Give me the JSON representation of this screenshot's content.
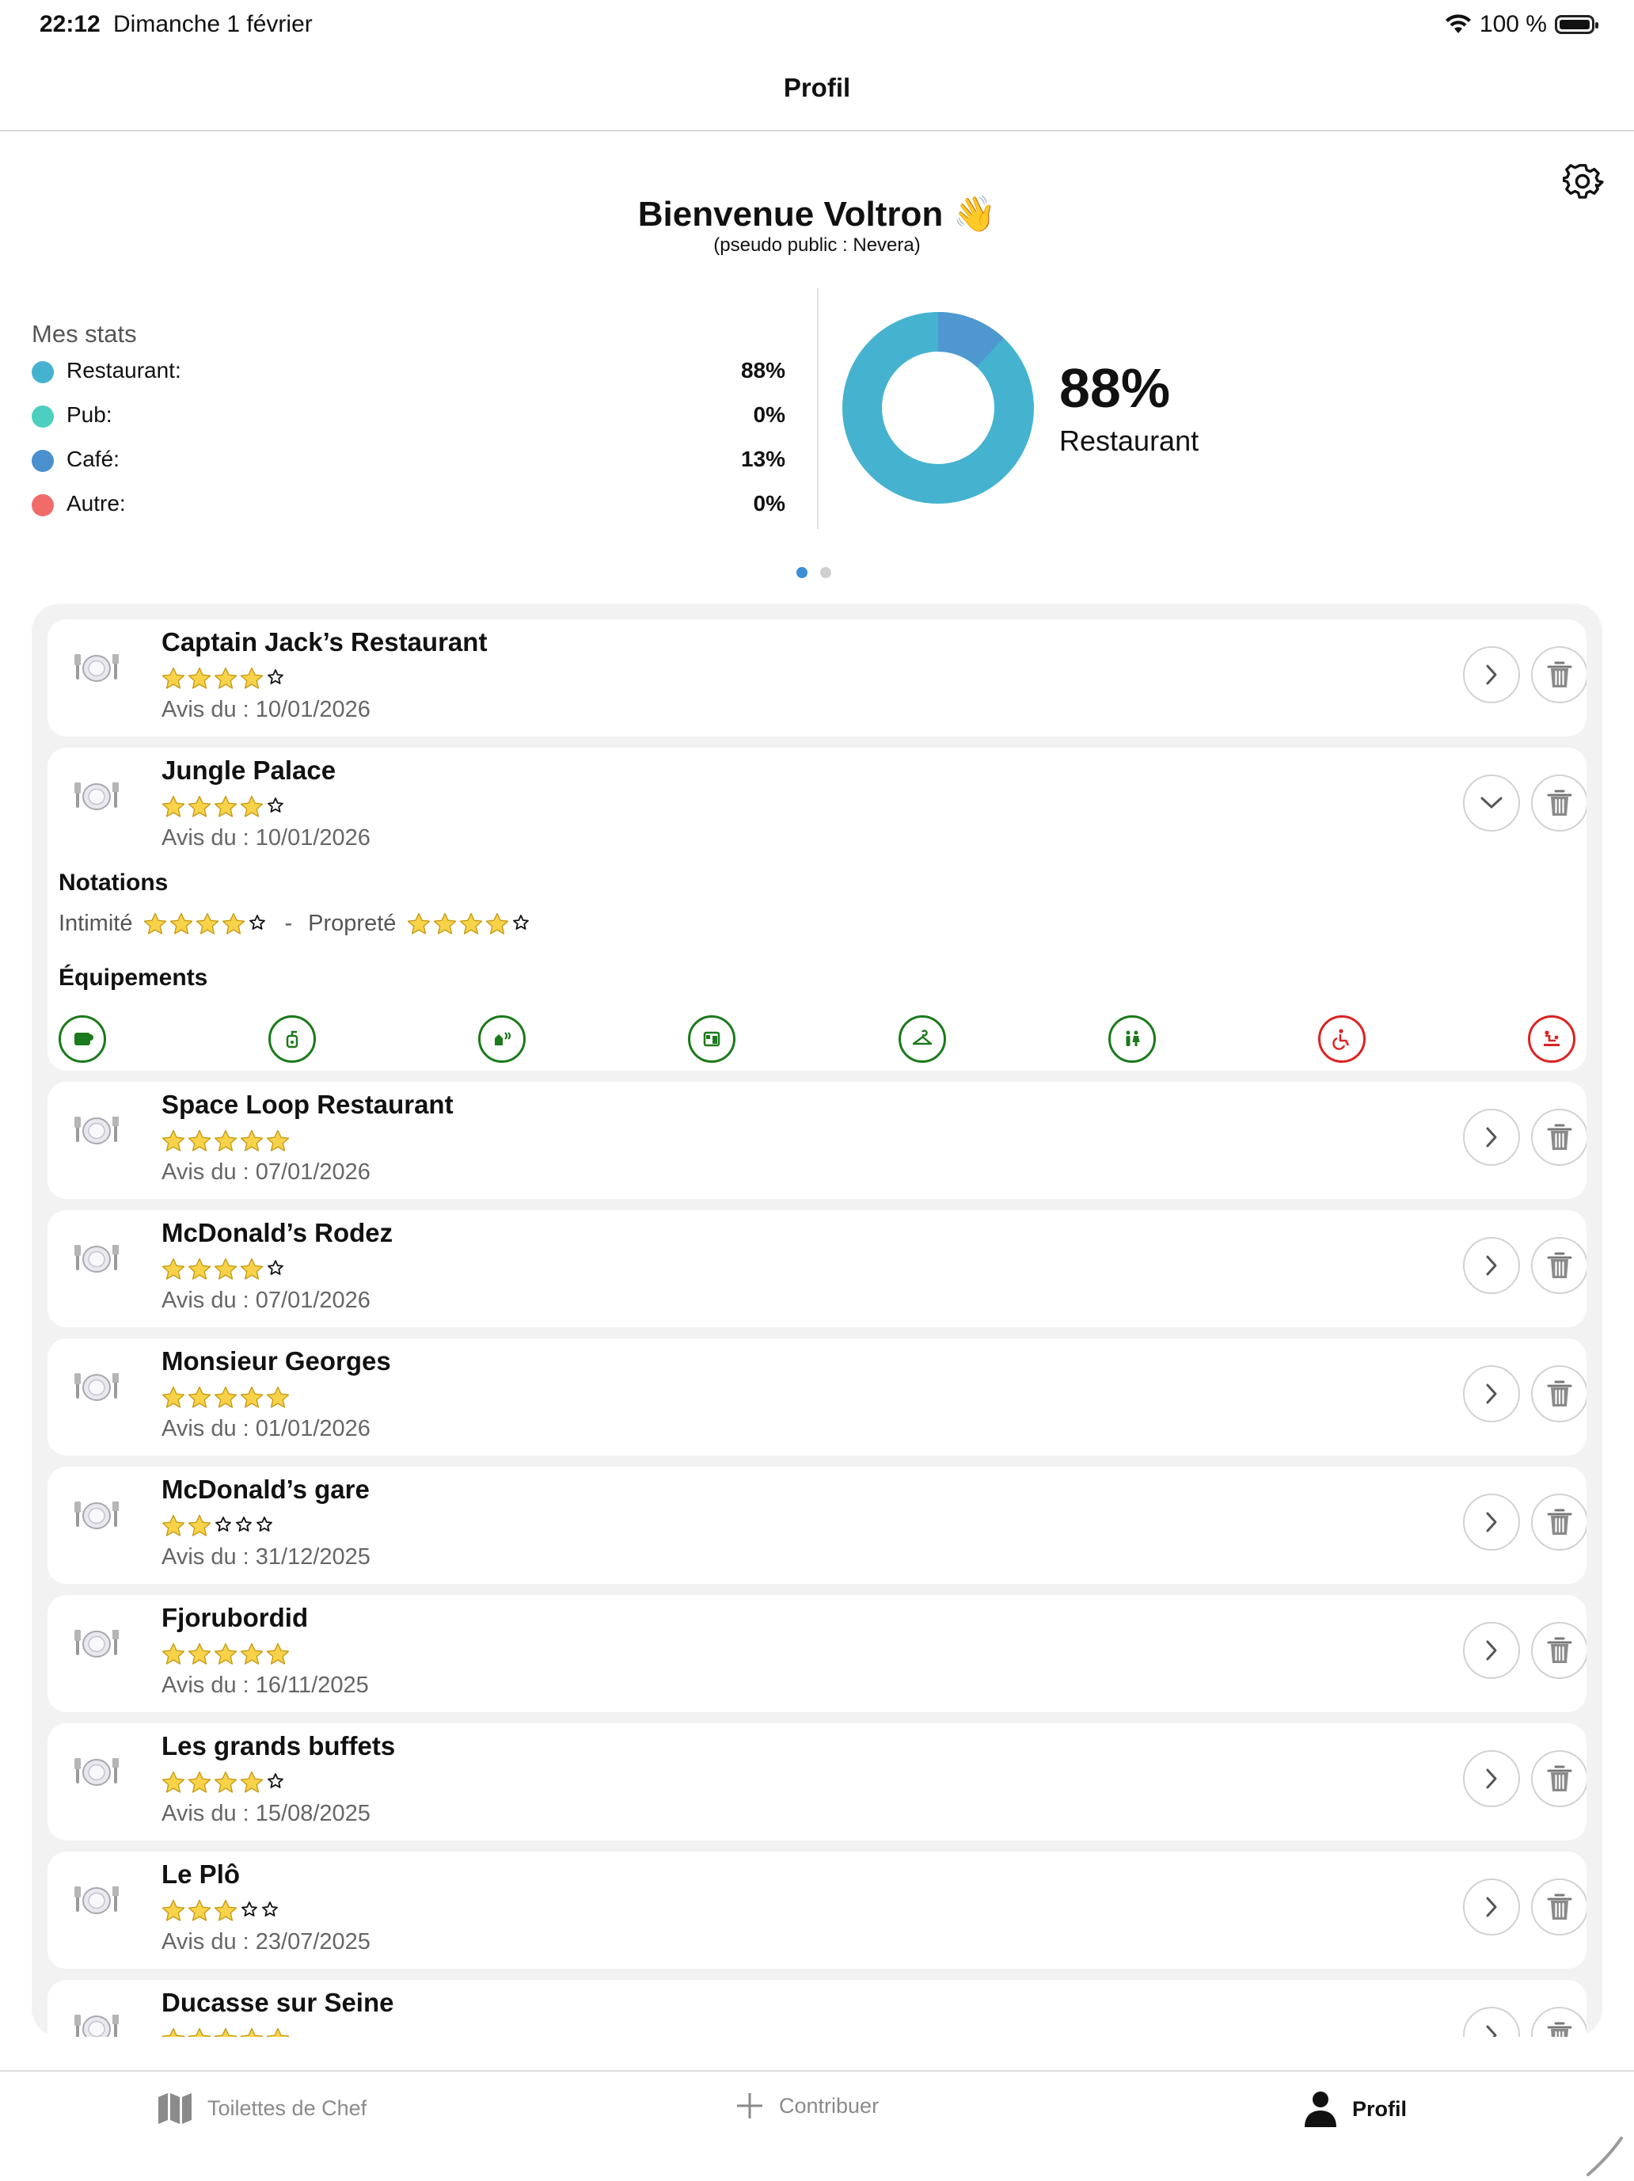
{
  "status_bar": {
    "time": "22:12",
    "date": "Dimanche 1 février",
    "battery": "100 %"
  },
  "nav": {
    "title": "Profil"
  },
  "header": {
    "welcome": "Bienvenue Voltron 👋",
    "pseudo": "(pseudo public : Nevera)"
  },
  "stats": {
    "title": "Mes stats",
    "items": [
      {
        "label": "Restaurant:",
        "value": "88%",
        "color": "#45b3cf"
      },
      {
        "label": "Pub:",
        "value": "0%",
        "color": "#4ccfc0"
      },
      {
        "label": "Café:",
        "value": "13%",
        "color": "#4a8fce"
      },
      {
        "label": "Autre:",
        "value": "0%",
        "color": "#f26b6b"
      }
    ],
    "donut_value": 0.88,
    "donut_main_color": "#45b3cf",
    "donut_accent_color": "#4f98cf",
    "donut_percent": "88%",
    "donut_label": "Restaurant"
  },
  "pager": {
    "active": 0,
    "pages": 2
  },
  "reviews": [
    {
      "name": "Captain Jack’s Restaurant",
      "rating": 4,
      "date_prefix": "Avis du :",
      "date": "10/01/2026",
      "expanded": false
    },
    {
      "name": "Jungle Palace",
      "rating": 4,
      "date_prefix": "Avis du :",
      "date": "10/01/2026",
      "expanded": true
    },
    {
      "name": "Space Loop Restaurant",
      "rating": 5,
      "date_prefix": "Avis du :",
      "date": "07/01/2026",
      "expanded": false
    },
    {
      "name": "McDonald’s Rodez",
      "rating": 4,
      "date_prefix": "Avis du :",
      "date": "07/01/2026",
      "expanded": false
    },
    {
      "name": "Monsieur Georges",
      "rating": 5,
      "date_prefix": "Avis du :",
      "date": "01/01/2026",
      "expanded": false
    },
    {
      "name": "McDonald’s gare",
      "rating": 2,
      "date_prefix": "Avis du :",
      "date": "31/12/2025",
      "expanded": false
    },
    {
      "name": "Fjorubordid",
      "rating": 5,
      "date_prefix": "Avis du :",
      "date": "16/11/2025",
      "expanded": false
    },
    {
      "name": "Les grands buffets",
      "rating": 4,
      "date_prefix": "Avis du :",
      "date": "15/08/2025",
      "expanded": false
    },
    {
      "name": "Le Plô",
      "rating": 3,
      "date_prefix": "Avis du :",
      "date": "23/07/2025",
      "expanded": false
    },
    {
      "name": "Ducasse sur Seine",
      "rating": 5,
      "date_prefix": "Avis du :",
      "date": "",
      "expanded": false
    }
  ],
  "details": {
    "notations_title": "Notations",
    "intimite_label": "Intimité",
    "intimite_rating": 4,
    "separator": "-",
    "proprete_label": "Propreté",
    "proprete_rating": 4,
    "equipements_title": "Équipements",
    "equipements": [
      {
        "icon": "toilet-paper-icon",
        "available": true
      },
      {
        "icon": "soap-dispenser-icon",
        "available": true
      },
      {
        "icon": "hand-dryer-icon",
        "available": true
      },
      {
        "icon": "paper-towel-icon",
        "available": true
      },
      {
        "icon": "coat-hanger-icon",
        "available": true
      },
      {
        "icon": "unisex-toilet-icon",
        "available": true
      },
      {
        "icon": "wheelchair-icon",
        "available": false
      },
      {
        "icon": "baby-changing-icon",
        "available": false
      }
    ]
  },
  "tabs": [
    {
      "label": "Toilettes de Chef",
      "icon": "map-icon",
      "active": false
    },
    {
      "label": "Contribuer",
      "icon": "plus-icon",
      "active": false
    },
    {
      "label": "Profil",
      "icon": "person-icon",
      "active": true
    }
  ]
}
